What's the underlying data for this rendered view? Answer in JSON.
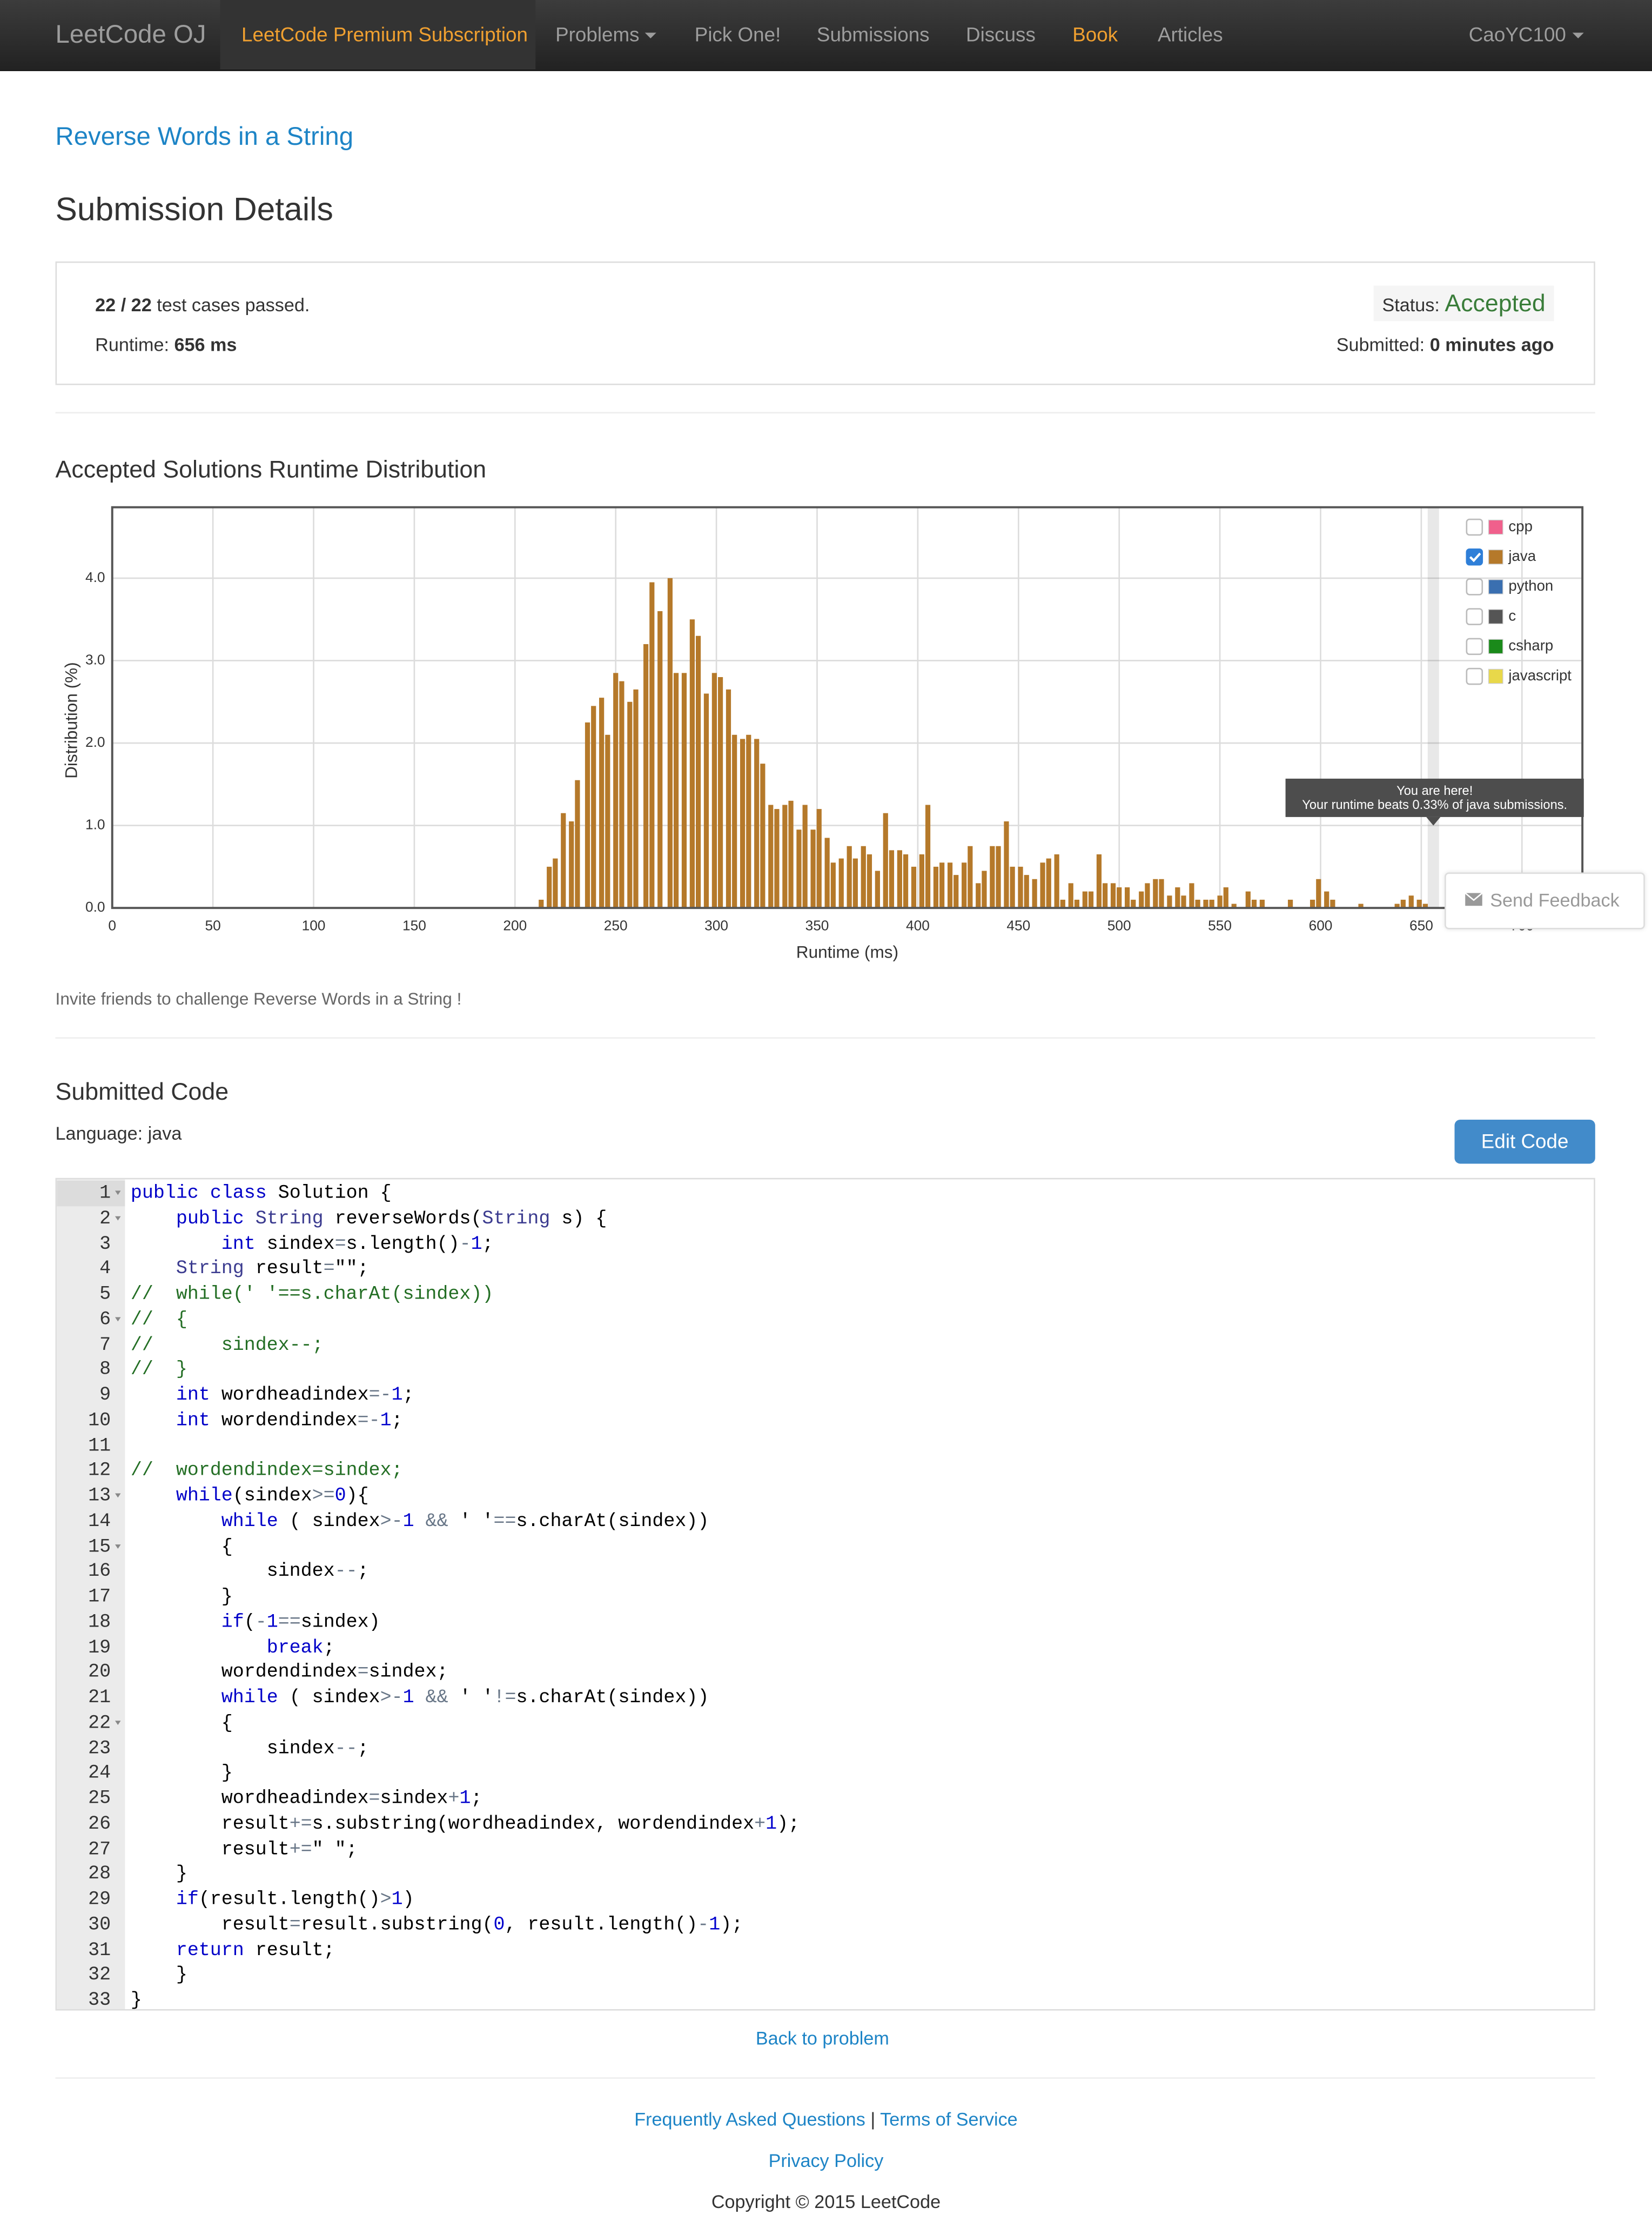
{
  "nav": {
    "brand": "LeetCode OJ",
    "items": [
      "LeetCode Premium Subscription",
      "Problems",
      "Pick One!",
      "Submissions",
      "Discuss",
      "Book",
      "Articles"
    ],
    "user": "CaoYC100"
  },
  "problem": "Reverse Words in a String",
  "heading": "Submission Details",
  "submission": {
    "passed": "22 / 22",
    "passed_text": "test cases passed.",
    "runtime_label": "Runtime:",
    "runtime": "656 ms",
    "status_label": "Status:",
    "status": "Accepted",
    "submitted_label": "Submitted:",
    "submitted": "0 minutes ago"
  },
  "chart_data": {
    "type": "bar",
    "title": "Accepted Solutions Runtime Distribution",
    "x_label": "Runtime (ms)",
    "y_label": "Distribution (%)",
    "xlim": [
      0,
      730
    ],
    "xticks": [
      0,
      50,
      100,
      150,
      200,
      250,
      300,
      350,
      400,
      450,
      500,
      550,
      600,
      650,
      700
    ],
    "ylim": [
      0,
      4.86
    ],
    "yticks": [
      {
        "value": 0,
        "label": "0.0"
      },
      {
        "value": 1,
        "label": "1.0"
      },
      {
        "value": 2,
        "label": "2.0"
      },
      {
        "value": 3,
        "label": "3.0"
      },
      {
        "value": 4,
        "label": "4.0"
      }
    ],
    "grid": true,
    "x": [
      213,
      217,
      220,
      224,
      228,
      231,
      236,
      239,
      243,
      246,
      250,
      253,
      257,
      260,
      265,
      268,
      272,
      277,
      280,
      284,
      288,
      291,
      295,
      299,
      302,
      306,
      309,
      313,
      316,
      320,
      323,
      327,
      330,
      334,
      337,
      341,
      344,
      348,
      351,
      355,
      358,
      362,
      366,
      369,
      373,
      376,
      380,
      384,
      387,
      391,
      394,
      398,
      402,
      405,
      409,
      412,
      416,
      419,
      423,
      426,
      430,
      433,
      437,
      440,
      444,
      447,
      451,
      454,
      458,
      462,
      465,
      469,
      472,
      476,
      479,
      483,
      486,
      490,
      493,
      497,
      500,
      504,
      507,
      511,
      514,
      518,
      521,
      525,
      529,
      532,
      536,
      539,
      543,
      546,
      550,
      553,
      557,
      564,
      567,
      571,
      585,
      596,
      599,
      603,
      606,
      620,
      638,
      641,
      645,
      649,
      652
    ],
    "series": [
      {
        "name": "cpp",
        "color": "#f0608c",
        "checked": false
      },
      {
        "name": "java",
        "color": "#b5792a",
        "checked": true,
        "values": [
          0.1,
          0.5,
          0.6,
          1.15,
          1.05,
          1.55,
          2.25,
          2.45,
          2.55,
          2.1,
          2.85,
          2.75,
          2.5,
          2.65,
          3.2,
          3.95,
          3.6,
          4.0,
          2.85,
          2.85,
          3.5,
          3.3,
          2.6,
          2.85,
          2.8,
          2.65,
          2.1,
          2.05,
          2.1,
          2.05,
          1.75,
          1.25,
          1.2,
          1.25,
          1.3,
          0.95,
          1.25,
          0.95,
          1.2,
          0.85,
          0.55,
          0.6,
          0.75,
          0.6,
          0.75,
          0.65,
          0.45,
          1.15,
          0.7,
          0.7,
          0.65,
          0.5,
          0.65,
          1.25,
          0.5,
          0.55,
          0.55,
          0.4,
          0.55,
          0.75,
          0.3,
          0.45,
          0.75,
          0.75,
          1.05,
          0.5,
          0.5,
          0.4,
          0.35,
          0.55,
          0.6,
          0.65,
          0.1,
          0.3,
          0.1,
          0.2,
          0.2,
          0.65,
          0.3,
          0.3,
          0.25,
          0.25,
          0.1,
          0.2,
          0.3,
          0.35,
          0.35,
          0.15,
          0.25,
          0.15,
          0.3,
          0.1,
          0.1,
          0.1,
          0.15,
          0.25,
          0.05,
          0.2,
          0.1,
          0.1,
          0.1,
          0.1,
          0.35,
          0.2,
          0.1,
          0.05,
          0.05,
          0.1,
          0.15,
          0.1,
          0.05
        ]
      },
      {
        "name": "python",
        "color": "#3a6fb0",
        "checked": false
      },
      {
        "name": "c",
        "color": "#555555",
        "checked": false
      },
      {
        "name": "csharp",
        "color": "#1a8a1a",
        "checked": false
      },
      {
        "name": "javascript",
        "color": "#e8d84a",
        "checked": false
      }
    ],
    "current_runtime": 656,
    "tooltip": {
      "title": "You are here!",
      "text": "Your runtime beats 0.33% of java submissions."
    }
  },
  "feedback": "Send Feedback",
  "invite": "Invite friends to challenge Reverse Words in a String !",
  "code_heading": "Submitted Code",
  "language": "Language: java",
  "edit_button": "Edit Code",
  "code": {
    "lines": [
      {
        "number": 1,
        "text": "public class Solution {"
      },
      {
        "number": 2,
        "text": "    public String reverseWords(String s) {"
      },
      {
        "number": 3,
        "text": "        int sindex=s.length()-1;"
      },
      {
        "number": 4,
        "text": "    String result=\"\";"
      },
      {
        "number": 5,
        "text": "//  while(' '==s.charAt(sindex))"
      },
      {
        "number": 6,
        "text": "//  {"
      },
      {
        "number": 7,
        "text": "//      sindex--;"
      },
      {
        "number": 8,
        "text": "//  }"
      },
      {
        "number": 9,
        "text": "    int wordheadindex=-1;"
      },
      {
        "number": 10,
        "text": "    int wordendindex=-1;"
      },
      {
        "number": 11
      },
      {
        "number": 12,
        "text": "//  wordendindex=sindex;"
      },
      {
        "number": 13,
        "text": "    while(sindex>=0){"
      },
      {
        "number": 14,
        "text": "        while ( sindex>-1 && ' '==s.charAt(sindex))"
      },
      {
        "number": 15,
        "text": "        {"
      },
      {
        "number": 16,
        "text": "            sindex--;"
      },
      {
        "number": 17,
        "text": "        }"
      },
      {
        "number": 18,
        "text": "        if(-1==sindex)"
      },
      {
        "number": 19,
        "text": "            break;"
      },
      {
        "number": 20,
        "text": "        wordendindex=sindex;"
      },
      {
        "number": 21,
        "text": "        while ( sindex>-1 && ' '!=s.charAt(sindex))"
      },
      {
        "number": 22,
        "text": "        {"
      },
      {
        "number": 23,
        "text": "            sindex--;"
      },
      {
        "number": 24,
        "text": "        }"
      },
      {
        "number": 25,
        "text": "        wordheadindex=sindex+1;"
      },
      {
        "number": 26,
        "text": "        result+=s.substring(wordheadindex, wordendindex+1);"
      },
      {
        "number": 27,
        "text": "        result+=\" \";"
      },
      {
        "number": 28,
        "text": "    }"
      },
      {
        "number": 29,
        "text": "    if(result.length()>1)"
      },
      {
        "number": 30,
        "text": "        result=result.substring(0, result.length()-1);"
      },
      {
        "number": 31,
        "text": "    return result;"
      },
      {
        "number": 32,
        "text": "    }"
      },
      {
        "number": 33,
        "text": "}"
      }
    ]
  },
  "back_link": "Back to problem",
  "footer": {
    "faq": "Frequently Asked Questions",
    "separator": "|",
    "terms": "Terms of Service",
    "privacy": "Privacy Policy",
    "copyright": "Copyright © 2015 LeetCode"
  }
}
